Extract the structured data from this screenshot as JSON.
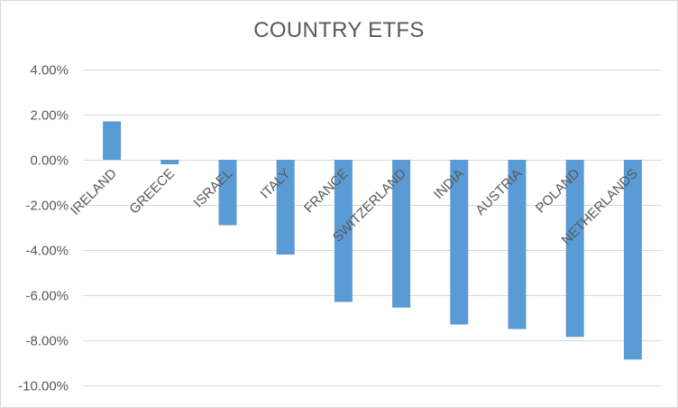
{
  "chart_data": {
    "type": "bar",
    "title": "COUNTRY ETFS",
    "xlabel": "",
    "ylabel": "",
    "categories": [
      "IRELAND",
      "GREECE",
      "ISRAEL",
      "ITALY",
      "FRANCE",
      "SWITZERLAND",
      "INDIA",
      "AUSTRIA",
      "POLAND",
      "NETHERLANDS"
    ],
    "values": [
      1.7,
      -0.2,
      -2.9,
      -4.2,
      -6.3,
      -6.55,
      -7.3,
      -7.5,
      -7.85,
      -8.85
    ],
    "ylim": [
      -10,
      4
    ],
    "yticks": [
      4,
      2,
      0,
      -2,
      -4,
      -6,
      -8,
      -10
    ],
    "ytick_labels": [
      "4.00%",
      "2.00%",
      "0.00%",
      "-2.00%",
      "-4.00%",
      "-6.00%",
      "-8.00%",
      "-10.00%"
    ],
    "grid": true,
    "legend": "none",
    "bar_color": "#5b9bd5",
    "grid_color": "#d9d9d9",
    "text_color": "#595959"
  }
}
